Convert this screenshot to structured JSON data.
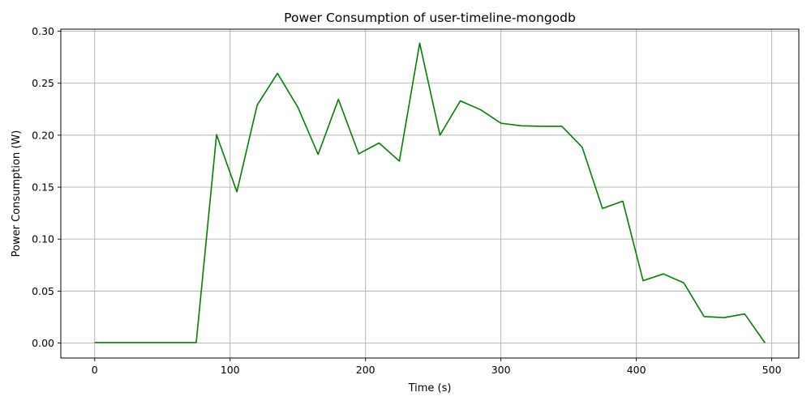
{
  "chart_data": {
    "type": "line",
    "title": "Power Consumption of user-timeline-mongodb",
    "xlabel": "Time (s)",
    "ylabel": "Power Consumption (W)",
    "xlim": [
      -25,
      520
    ],
    "ylim": [
      -0.0144,
      0.302
    ],
    "grid": true,
    "line_color": "#008000",
    "x_ticks": [
      0,
      100,
      200,
      300,
      400,
      500
    ],
    "x_tick_labels": [
      "0",
      "100",
      "200",
      "300",
      "400",
      "500"
    ],
    "y_ticks": [
      0,
      0.05,
      0.1,
      0.15,
      0.2,
      0.25,
      0.3
    ],
    "y_tick_labels": [
      "0.00",
      "0.05",
      "0.10",
      "0.15",
      "0.20",
      "0.25",
      "0.30"
    ],
    "series": [
      {
        "x": [
          0,
          15,
          30,
          45,
          60,
          75,
          90,
          105,
          120,
          135,
          150,
          165,
          180,
          195,
          210,
          225,
          240,
          255,
          270,
          285,
          300,
          315,
          330,
          345,
          360,
          375,
          390,
          405,
          420,
          435,
          450,
          465,
          480,
          495
        ],
        "values": [
          0.0005,
          0.0005,
          0.0005,
          0.0005,
          0.0005,
          0.0005,
          0.2005,
          0.1455,
          0.229,
          0.2595,
          0.227,
          0.1815,
          0.2345,
          0.182,
          0.1925,
          0.175,
          0.2885,
          0.2,
          0.233,
          0.2245,
          0.2115,
          0.209,
          0.2085,
          0.2085,
          0.1885,
          0.1295,
          0.1365,
          0.06,
          0.0665,
          0.058,
          0.0255,
          0.0245,
          0.028,
          0.0002
        ]
      }
    ]
  }
}
